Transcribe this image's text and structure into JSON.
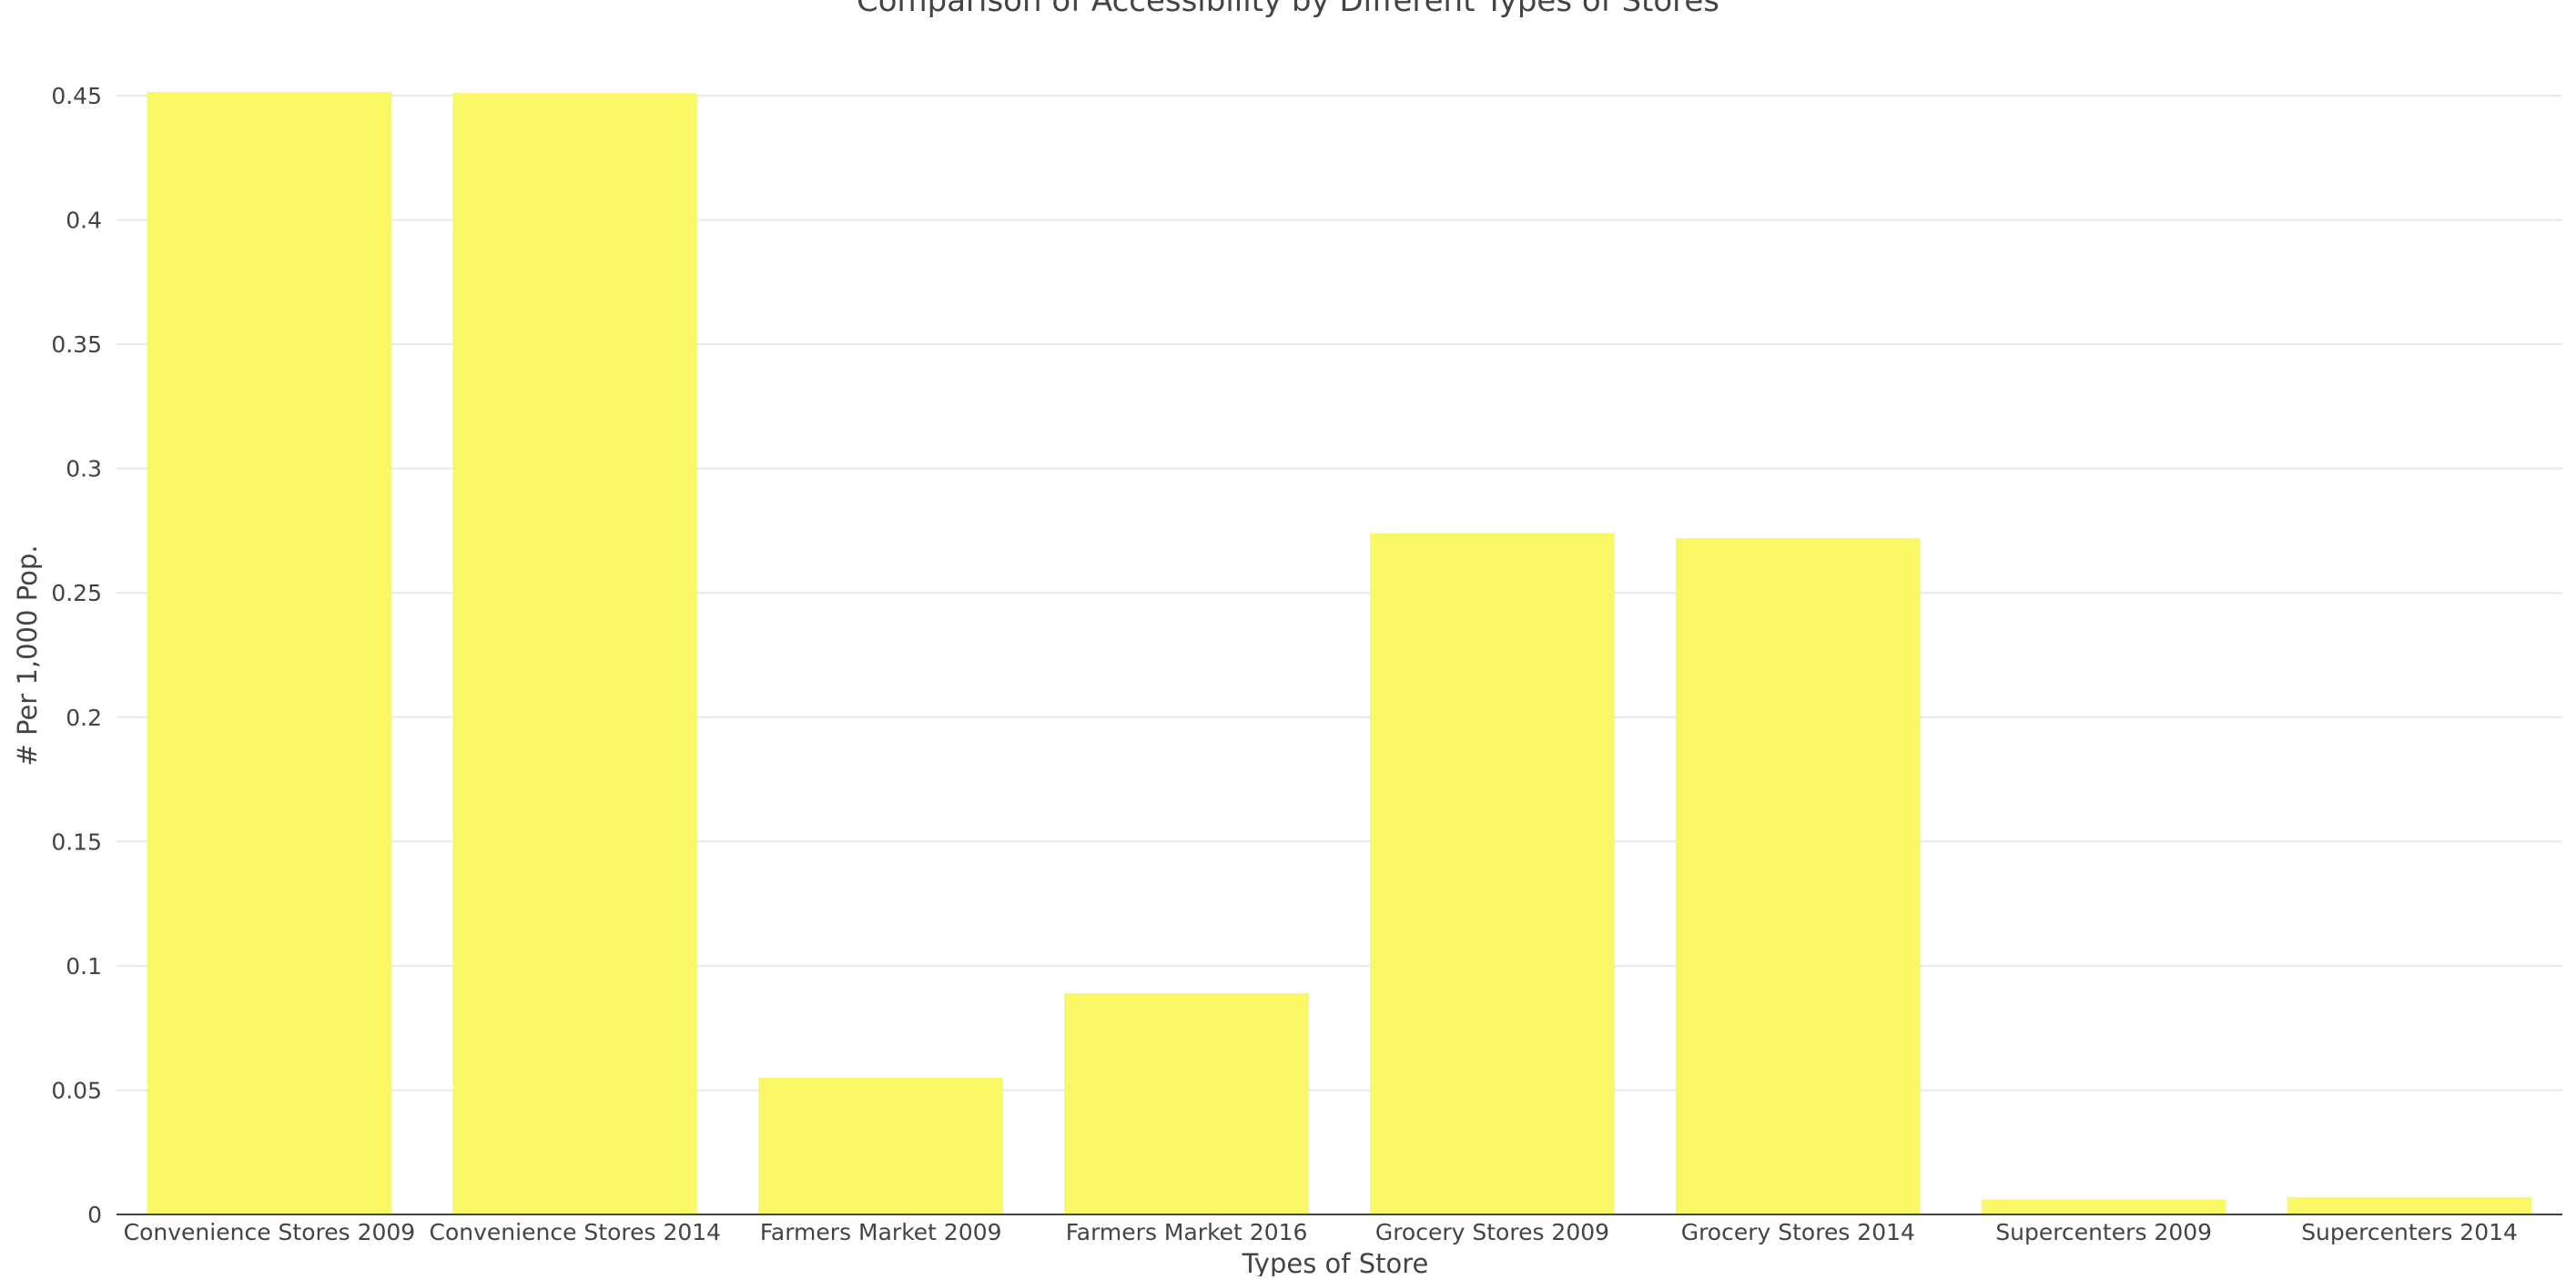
{
  "chart_data": {
    "type": "bar",
    "title": "Comparison of Accessibility by Different Types of Stores",
    "xlabel": "Types of Store",
    "ylabel": "# Per 1,000 Pop.",
    "categories": [
      "Convenience Stores 2009",
      "Convenience Stores 2014",
      "Farmers Market 2009",
      "Farmers Market 2016",
      "Grocery Stores 2009",
      "Grocery Stores 2014",
      "Supercenters 2009",
      "Supercenters 2014"
    ],
    "values": [
      0.452,
      0.451,
      0.055,
      0.089,
      0.274,
      0.272,
      0.006,
      0.007
    ],
    "ylim": [
      0,
      0.45
    ],
    "yticks": [
      0,
      0.05,
      0.1,
      0.15,
      0.2,
      0.25,
      0.3,
      0.35,
      0.4,
      0.45
    ],
    "ytick_labels": [
      "0",
      "0.05",
      "0.1",
      "0.15",
      "0.2",
      "0.25",
      "0.3",
      "0.35",
      "0.4",
      "0.45"
    ],
    "grid": true,
    "legend": "none",
    "colors": {
      "bar": "#FAF864",
      "grid": "#e8e8e8",
      "axis": "#444444",
      "text": "#444444"
    }
  }
}
